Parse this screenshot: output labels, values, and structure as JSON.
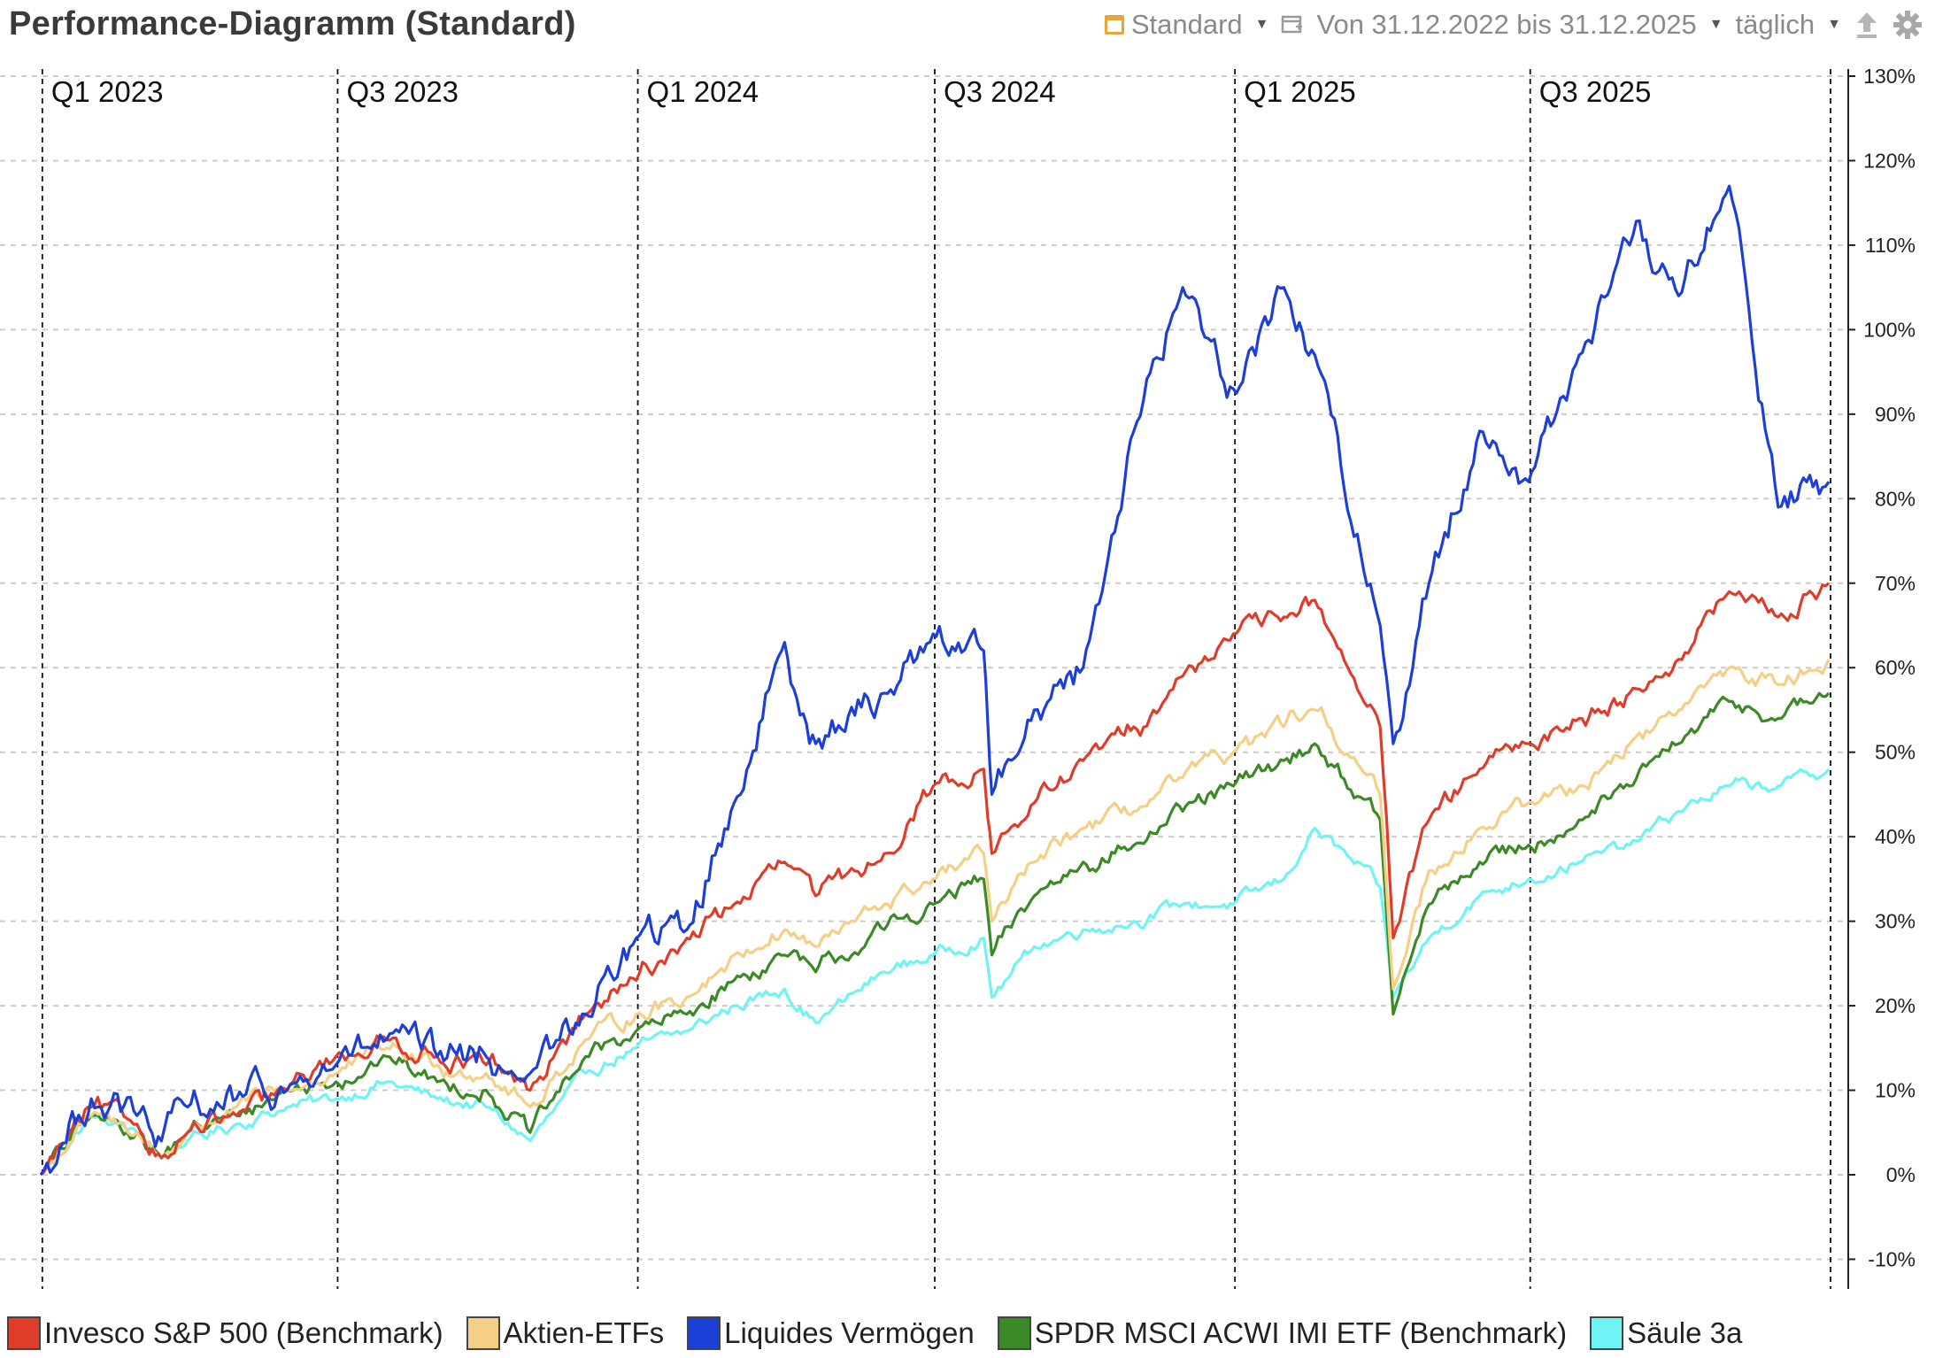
{
  "header": {
    "title": "Performance-Diagramm (Standard)",
    "view_selector": "Standard",
    "range_label": "Von 31.12.2022 bis 31.12.2025",
    "interval": "täglich",
    "icons": [
      "calendar-icon",
      "window-icon",
      "upload-icon",
      "gear-icon"
    ]
  },
  "colors": {
    "grid": "#cccccc",
    "quarter_line": "#111111",
    "accent": "#e8a33a"
  },
  "chart_data": {
    "type": "line",
    "title": "Performance-Diagramm (Standard)",
    "x_range": [
      "2022-12-31",
      "2025-12-31"
    ],
    "ylim": [
      -12,
      133
    ],
    "y_ticks": [
      -10,
      0,
      10,
      20,
      30,
      40,
      50,
      60,
      70,
      80,
      90,
      100,
      110,
      120,
      130
    ],
    "y_tick_labels": [
      "-10%",
      "0%",
      "10%",
      "20%",
      "30%",
      "40%",
      "50%",
      "60%",
      "70%",
      "80%",
      "90%",
      "100%",
      "110%",
      "120%",
      "130%"
    ],
    "y_axis_position": "right",
    "grid": true,
    "legend_position": "bottom",
    "quarter_markers": [
      {
        "date": "2023-01-01",
        "label": "Q1 2023"
      },
      {
        "date": "2023-07-01",
        "label": "Q3 2023"
      },
      {
        "date": "2024-01-01",
        "label": "Q1 2024"
      },
      {
        "date": "2024-07-01",
        "label": "Q3 2024"
      },
      {
        "date": "2025-01-01",
        "label": "Q1 2025"
      },
      {
        "date": "2025-07-01",
        "label": "Q3 2025"
      }
    ],
    "series": [
      {
        "name": "Säule 3a",
        "color": "#6ef4f4",
        "points": [
          [
            "2022-12-31",
            0
          ],
          [
            "2023-01-31",
            7
          ],
          [
            "2023-02-28",
            5
          ],
          [
            "2023-03-15",
            2
          ],
          [
            "2023-03-31",
            4
          ],
          [
            "2023-04-30",
            6
          ],
          [
            "2023-05-31",
            8
          ],
          [
            "2023-06-30",
            9
          ],
          [
            "2023-07-31",
            11
          ],
          [
            "2023-08-31",
            9
          ],
          [
            "2023-09-30",
            8
          ],
          [
            "2023-10-27",
            4
          ],
          [
            "2023-11-30",
            12
          ],
          [
            "2023-12-31",
            15
          ],
          [
            "2024-01-31",
            17
          ],
          [
            "2024-02-29",
            20
          ],
          [
            "2024-03-31",
            22
          ],
          [
            "2024-04-19",
            18
          ],
          [
            "2024-05-31",
            24
          ],
          [
            "2024-06-30",
            26
          ],
          [
            "2024-07-31",
            28
          ],
          [
            "2024-08-05",
            21
          ],
          [
            "2024-08-31",
            27
          ],
          [
            "2024-09-30",
            29
          ],
          [
            "2024-10-31",
            30
          ],
          [
            "2024-11-30",
            32
          ],
          [
            "2024-12-31",
            32
          ],
          [
            "2025-01-31",
            35
          ],
          [
            "2025-02-19",
            41
          ],
          [
            "2025-03-31",
            34
          ],
          [
            "2025-04-08",
            21
          ],
          [
            "2025-04-30",
            28
          ],
          [
            "2025-05-31",
            33
          ],
          [
            "2025-06-30",
            35
          ],
          [
            "2025-07-31",
            37
          ],
          [
            "2025-08-31",
            39
          ],
          [
            "2025-09-30",
            43
          ],
          [
            "2025-10-31",
            46
          ],
          [
            "2025-11-30",
            46
          ],
          [
            "2025-12-31",
            48
          ]
        ]
      },
      {
        "name": "SPDR MSCI ACWI IMI ETF (Benchmark)",
        "color": "#3b8a27",
        "points": [
          [
            "2022-12-31",
            0
          ],
          [
            "2023-01-31",
            7
          ],
          [
            "2023-02-28",
            5
          ],
          [
            "2023-03-15",
            2
          ],
          [
            "2023-03-31",
            5
          ],
          [
            "2023-04-30",
            7
          ],
          [
            "2023-05-31",
            10
          ],
          [
            "2023-06-30",
            11
          ],
          [
            "2023-07-31",
            14
          ],
          [
            "2023-08-31",
            11
          ],
          [
            "2023-09-30",
            10
          ],
          [
            "2023-10-27",
            5
          ],
          [
            "2023-11-30",
            14
          ],
          [
            "2023-12-31",
            17
          ],
          [
            "2024-01-31",
            19
          ],
          [
            "2024-02-29",
            23
          ],
          [
            "2024-03-31",
            26
          ],
          [
            "2024-04-19",
            24
          ],
          [
            "2024-05-31",
            29
          ],
          [
            "2024-06-30",
            32
          ],
          [
            "2024-07-31",
            35
          ],
          [
            "2024-08-05",
            26
          ],
          [
            "2024-08-31",
            33
          ],
          [
            "2024-09-30",
            37
          ],
          [
            "2024-10-31",
            39
          ],
          [
            "2024-11-30",
            43
          ],
          [
            "2024-12-31",
            46
          ],
          [
            "2025-01-31",
            49
          ],
          [
            "2025-02-19",
            51
          ],
          [
            "2025-03-31",
            42
          ],
          [
            "2025-04-08",
            19
          ],
          [
            "2025-04-30",
            32
          ],
          [
            "2025-05-31",
            37
          ],
          [
            "2025-06-30",
            39
          ],
          [
            "2025-07-31",
            42
          ],
          [
            "2025-08-31",
            46
          ],
          [
            "2025-09-30",
            51
          ],
          [
            "2025-10-31",
            56
          ],
          [
            "2025-11-30",
            54
          ],
          [
            "2025-12-31",
            57
          ]
        ]
      },
      {
        "name": "Aktien-ETFs",
        "color": "#f5cf86",
        "points": [
          [
            "2022-12-31",
            0
          ],
          [
            "2023-01-31",
            7
          ],
          [
            "2023-02-28",
            5
          ],
          [
            "2023-03-15",
            2
          ],
          [
            "2023-03-31",
            5
          ],
          [
            "2023-04-30",
            8
          ],
          [
            "2023-05-31",
            10
          ],
          [
            "2023-06-30",
            12
          ],
          [
            "2023-07-31",
            15
          ],
          [
            "2023-08-31",
            13
          ],
          [
            "2023-09-30",
            12
          ],
          [
            "2023-10-27",
            8
          ],
          [
            "2023-11-30",
            16
          ],
          [
            "2023-12-31",
            19
          ],
          [
            "2024-01-31",
            21
          ],
          [
            "2024-02-29",
            26
          ],
          [
            "2024-03-31",
            29
          ],
          [
            "2024-04-19",
            27
          ],
          [
            "2024-05-31",
            32
          ],
          [
            "2024-06-30",
            35
          ],
          [
            "2024-07-31",
            38
          ],
          [
            "2024-08-05",
            30
          ],
          [
            "2024-08-31",
            37
          ],
          [
            "2024-09-30",
            41
          ],
          [
            "2024-10-31",
            43
          ],
          [
            "2024-11-30",
            47
          ],
          [
            "2024-12-31",
            50
          ],
          [
            "2025-01-31",
            53
          ],
          [
            "2025-02-19",
            55
          ],
          [
            "2025-03-31",
            45
          ],
          [
            "2025-04-08",
            22
          ],
          [
            "2025-04-30",
            36
          ],
          [
            "2025-05-31",
            41
          ],
          [
            "2025-06-30",
            44
          ],
          [
            "2025-07-31",
            46
          ],
          [
            "2025-08-31",
            51
          ],
          [
            "2025-09-30",
            55
          ],
          [
            "2025-10-31",
            60
          ],
          [
            "2025-11-30",
            58
          ],
          [
            "2025-12-31",
            61
          ]
        ]
      },
      {
        "name": "Invesco S&P 500 (Benchmark)",
        "color": "#e03c2a",
        "points": [
          [
            "2022-12-31",
            0
          ],
          [
            "2023-01-31",
            8
          ],
          [
            "2023-02-28",
            6
          ],
          [
            "2023-03-15",
            2
          ],
          [
            "2023-03-31",
            5
          ],
          [
            "2023-04-30",
            7
          ],
          [
            "2023-05-31",
            10
          ],
          [
            "2023-06-30",
            14
          ],
          [
            "2023-07-31",
            16
          ],
          [
            "2023-08-31",
            14
          ],
          [
            "2023-09-30",
            13
          ],
          [
            "2023-10-27",
            10
          ],
          [
            "2023-11-30",
            19
          ],
          [
            "2023-12-31",
            23
          ],
          [
            "2024-01-31",
            28
          ],
          [
            "2024-02-29",
            32
          ],
          [
            "2024-03-31",
            37
          ],
          [
            "2024-04-19",
            33
          ],
          [
            "2024-05-31",
            38
          ],
          [
            "2024-06-30",
            46
          ],
          [
            "2024-07-31",
            48
          ],
          [
            "2024-08-05",
            38
          ],
          [
            "2024-08-31",
            44
          ],
          [
            "2024-09-30",
            49
          ],
          [
            "2024-10-31",
            53
          ],
          [
            "2024-11-30",
            59
          ],
          [
            "2024-12-31",
            64
          ],
          [
            "2025-01-31",
            66
          ],
          [
            "2025-02-19",
            68
          ],
          [
            "2025-03-31",
            53
          ],
          [
            "2025-04-08",
            28
          ],
          [
            "2025-04-30",
            42
          ],
          [
            "2025-05-31",
            48
          ],
          [
            "2025-06-30",
            51
          ],
          [
            "2025-07-31",
            54
          ],
          [
            "2025-08-31",
            57
          ],
          [
            "2025-09-30",
            61
          ],
          [
            "2025-10-31",
            69
          ],
          [
            "2025-11-30",
            66
          ],
          [
            "2025-12-31",
            70
          ]
        ]
      },
      {
        "name": "Liquides Vermögen",
        "color": "#1c3fd8",
        "points": [
          [
            "2022-12-31",
            0
          ],
          [
            "2023-01-31",
            9
          ],
          [
            "2023-02-28",
            7
          ],
          [
            "2023-03-15",
            4
          ],
          [
            "2023-03-31",
            8
          ],
          [
            "2023-04-30",
            9
          ],
          [
            "2023-05-31",
            10
          ],
          [
            "2023-06-30",
            13
          ],
          [
            "2023-07-31",
            16
          ],
          [
            "2023-08-31",
            14
          ],
          [
            "2023-09-30",
            14
          ],
          [
            "2023-10-27",
            12
          ],
          [
            "2023-11-30",
            19
          ],
          [
            "2023-12-31",
            28
          ],
          [
            "2024-01-31",
            29
          ],
          [
            "2024-02-29",
            44
          ],
          [
            "2024-03-31",
            63
          ],
          [
            "2024-04-19",
            51
          ],
          [
            "2024-05-31",
            57
          ],
          [
            "2024-06-30",
            64
          ],
          [
            "2024-07-31",
            62
          ],
          [
            "2024-08-05",
            45
          ],
          [
            "2024-08-31",
            55
          ],
          [
            "2024-09-30",
            60
          ],
          [
            "2024-10-31",
            88
          ],
          [
            "2024-11-30",
            105
          ],
          [
            "2024-12-31",
            93
          ],
          [
            "2025-01-31",
            105
          ],
          [
            "2025-02-19",
            97
          ],
          [
            "2025-03-31",
            65
          ],
          [
            "2025-04-08",
            51
          ],
          [
            "2025-04-30",
            70
          ],
          [
            "2025-05-31",
            88
          ],
          [
            "2025-06-30",
            82
          ],
          [
            "2025-07-31",
            97
          ],
          [
            "2025-08-31",
            110
          ],
          [
            "2025-09-30",
            104
          ],
          [
            "2025-10-31",
            117
          ],
          [
            "2025-11-30",
            79
          ],
          [
            "2025-12-31",
            82
          ]
        ]
      }
    ],
    "legend": [
      {
        "name": "Invesco S&P 500 (Benchmark)",
        "color": "#e03c2a"
      },
      {
        "name": "Aktien-ETFs",
        "color": "#f5cf86"
      },
      {
        "name": "Liquides Vermögen",
        "color": "#1c3fd8"
      },
      {
        "name": "SPDR MSCI ACWI IMI ETF (Benchmark)",
        "color": "#3b8a27"
      },
      {
        "name": "Säule 3a",
        "color": "#6ef4f4"
      }
    ]
  }
}
